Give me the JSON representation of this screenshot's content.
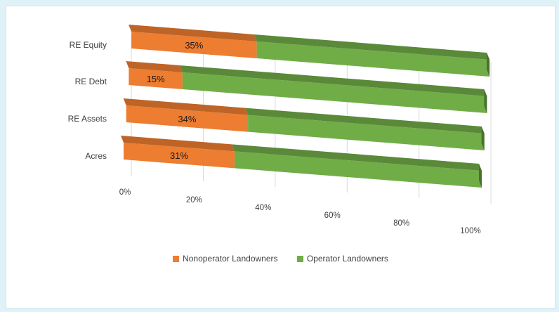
{
  "chart_data": {
    "type": "bar",
    "orientation": "horizontal",
    "stacking": "percent",
    "categories": [
      "RE Equity",
      "RE Debt",
      "RE Assets",
      "Acres"
    ],
    "series": [
      {
        "name": "Nonoperator Landowners",
        "values": [
          35,
          15,
          34,
          31
        ],
        "color": "#ed7d31",
        "labels": [
          "35%",
          "15%",
          "34%",
          "31%"
        ]
      },
      {
        "name": "Operator Landowners",
        "values": [
          65,
          85,
          66,
          69
        ],
        "color": "#70ad47"
      }
    ],
    "xlim": [
      0,
      100
    ],
    "xticks": [
      "0%",
      "20%",
      "40%",
      "60%",
      "80%",
      "100%"
    ],
    "grid": true,
    "legend": "bottom"
  }
}
